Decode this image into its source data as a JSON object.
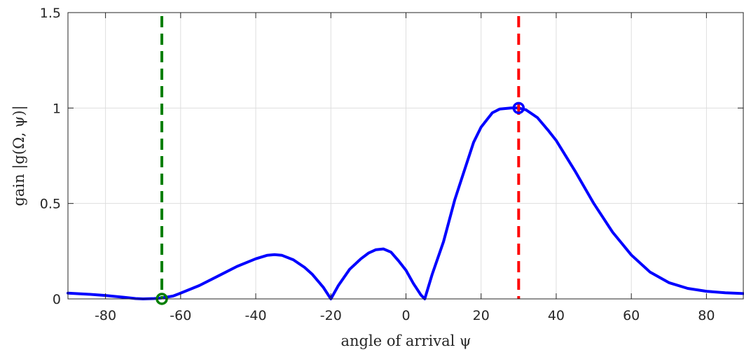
{
  "chart_data": {
    "type": "line",
    "xlabel": "angle of arrival ψ",
    "ylabel": "gain |g(Ω, ψ)|",
    "xlim": [
      -90,
      90
    ],
    "ylim": [
      0,
      1.5
    ],
    "xticks": [
      -80,
      -60,
      -40,
      -20,
      0,
      20,
      40,
      60,
      80
    ],
    "yticks": [
      0,
      0.5,
      1,
      1.5
    ],
    "xtick_labels": [
      "-80",
      "-60",
      "-40",
      "-20",
      "0",
      "20",
      "40",
      "60",
      "80"
    ],
    "ytick_labels": [
      "0",
      "0.5",
      "1",
      "1.5"
    ],
    "grid": true,
    "series": [
      {
        "color": "#0000ff",
        "style": "solid",
        "x": [
          -90,
          -85,
          -80,
          -75,
          -72,
          -70,
          -67,
          -65,
          -62,
          -60,
          -55,
          -50,
          -45,
          -40,
          -37,
          -35,
          -33,
          -30,
          -27,
          -25,
          -22,
          -20,
          -18,
          -15,
          -12,
          -10,
          -8,
          -6,
          -4,
          -2,
          0,
          2,
          4,
          5,
          7,
          10,
          13,
          15,
          18,
          20,
          23,
          25,
          28,
          30,
          32,
          35,
          38,
          40,
          45,
          50,
          55,
          60,
          65,
          70,
          75,
          80,
          85,
          90
        ],
        "y": [
          0.03,
          0.025,
          0.018,
          0.008,
          0.002,
          0.0,
          0.002,
          0.005,
          0.015,
          0.03,
          0.07,
          0.12,
          0.17,
          0.21,
          0.228,
          0.232,
          0.228,
          0.205,
          0.165,
          0.13,
          0.06,
          0.0,
          0.07,
          0.155,
          0.21,
          0.24,
          0.258,
          0.262,
          0.245,
          0.2,
          0.15,
          0.08,
          0.02,
          0.0,
          0.13,
          0.3,
          0.52,
          0.64,
          0.82,
          0.9,
          0.975,
          0.995,
          1.0,
          1.0,
          0.99,
          0.95,
          0.88,
          0.83,
          0.67,
          0.5,
          0.35,
          0.23,
          0.14,
          0.085,
          0.055,
          0.04,
          0.032,
          0.028
        ]
      }
    ],
    "vlines": [
      {
        "x": -65,
        "color": "#007f00",
        "style": "dashed"
      },
      {
        "x": 30,
        "color": "#ff0000",
        "style": "dashed"
      }
    ],
    "markers": [
      {
        "x": -65,
        "y": 0.0,
        "color": "#007f00",
        "shape": "circle-open"
      },
      {
        "x": 30,
        "y": 1.0,
        "color": "#0000ff",
        "shape": "circle-open"
      }
    ]
  }
}
